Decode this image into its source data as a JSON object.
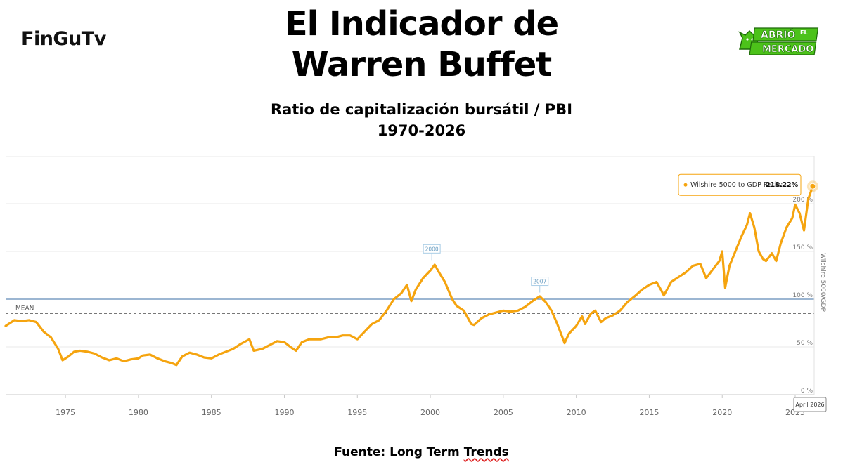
{
  "brand_left": "FinGuTv",
  "title_line1": "El Indicador de",
  "title_line2": "Warren Buffet",
  "subtitle_line1": "Ratio de capitalización bursátil / PBI",
  "subtitle_line2": "1970-2026",
  "badge": {
    "line1": "ABRIÓ",
    "line2": "MERCADO",
    "small": "EL"
  },
  "source_prefix": "Fuente: Long Term ",
  "source_underlined": "Trends",
  "colors": {
    "series": "#f5a40f",
    "mean": "#777777",
    "hundred": "#3a6ea5",
    "badge_green": "#4cc21a"
  },
  "chart_data": {
    "type": "line",
    "title": "Ratio de capitalización bursátil / PBI",
    "ylabel": "Wilshire 5000/GDP",
    "xlim": [
      1970.9,
      2026.3
    ],
    "ylim": [
      0,
      250
    ],
    "x_ticks": [
      1975,
      1980,
      1985,
      1990,
      1995,
      2000,
      2005,
      2010,
      2015,
      2020,
      2025
    ],
    "x_tick_labels": [
      "1975",
      "1980",
      "1985",
      "1990",
      "1995",
      "2000",
      "2005",
      "2010",
      "2015",
      "2020",
      "2025"
    ],
    "y_ticks": [
      0,
      50,
      100,
      150,
      200
    ],
    "y_tick_labels": [
      "0 %",
      "50 %",
      "100 %",
      "150 %",
      "200 %"
    ],
    "mean": {
      "label": "MEAN",
      "value": 85
    },
    "reference_100": 100,
    "annotations": [
      {
        "label": "2000",
        "x": 2000.1,
        "y": 138
      },
      {
        "label": "2007",
        "x": 2007.5,
        "y": 104
      }
    ],
    "tooltip": {
      "label": "Wilshire 5000 to GDP Ratio:",
      "value": "218.22%",
      "x": 2026.2,
      "y": 218.2
    },
    "crosshair_label": "April 2026",
    "series": [
      {
        "name": "Wilshire 5000 to GDP Ratio",
        "x": [
          1970.9,
          1971.5,
          1972.0,
          1972.5,
          1973.0,
          1973.5,
          1974.0,
          1974.5,
          1974.8,
          1975.2,
          1975.6,
          1976.0,
          1976.5,
          1977.0,
          1977.5,
          1978.0,
          1978.5,
          1979.0,
          1979.5,
          1980.0,
          1980.3,
          1980.8,
          1981.3,
          1981.8,
          1982.3,
          1982.6,
          1983.0,
          1983.5,
          1984.0,
          1984.5,
          1985.0,
          1985.5,
          1986.0,
          1986.5,
          1987.0,
          1987.6,
          1987.9,
          1988.5,
          1989.0,
          1989.5,
          1990.0,
          1990.5,
          1990.8,
          1991.2,
          1991.7,
          1992.5,
          1993.0,
          1993.5,
          1994.0,
          1994.5,
          1995.0,
          1995.5,
          1996.0,
          1996.5,
          1997.0,
          1997.5,
          1998.0,
          1998.4,
          1998.7,
          1999.0,
          1999.5,
          2000.0,
          2000.3,
          2000.6,
          2001.0,
          2001.5,
          2001.8,
          2002.3,
          2002.8,
          2003.0,
          2003.5,
          2004.0,
          2004.5,
          2005.0,
          2005.5,
          2006.0,
          2006.5,
          2007.0,
          2007.5,
          2007.9,
          2008.3,
          2008.7,
          2009.0,
          2009.2,
          2009.5,
          2010.0,
          2010.4,
          2010.6,
          2011.0,
          2011.3,
          2011.7,
          2012.0,
          2012.5,
          2013.0,
          2013.5,
          2014.0,
          2014.5,
          2015.0,
          2015.5,
          2015.8,
          2016.0,
          2016.5,
          2017.0,
          2017.5,
          2018.0,
          2018.5,
          2018.9,
          2019.3,
          2019.8,
          2020.0,
          2020.2,
          2020.5,
          2020.9,
          2021.3,
          2021.7,
          2021.9,
          2022.2,
          2022.5,
          2022.8,
          2023.0,
          2023.4,
          2023.7,
          2024.0,
          2024.4,
          2024.8,
          2025.0,
          2025.3,
          2025.6,
          2025.9,
          2026.2
        ],
        "values": [
          72,
          78,
          77,
          78,
          76,
          66,
          60,
          48,
          36,
          40,
          45,
          46,
          45,
          43,
          39,
          36,
          38,
          35,
          37,
          38,
          41,
          42,
          38,
          35,
          33,
          31,
          40,
          44,
          42,
          39,
          38,
          42,
          45,
          48,
          53,
          58,
          46,
          48,
          52,
          56,
          55,
          49,
          46,
          55,
          58,
          58,
          60,
          60,
          62,
          62,
          58,
          66,
          74,
          78,
          88,
          100,
          106,
          115,
          98,
          110,
          122,
          130,
          136,
          128,
          118,
          100,
          93,
          88,
          74,
          73,
          80,
          84,
          86,
          88,
          87,
          88,
          92,
          98,
          103,
          97,
          88,
          74,
          62,
          54,
          64,
          72,
          82,
          74,
          85,
          88,
          76,
          80,
          83,
          88,
          97,
          103,
          110,
          115,
          118,
          110,
          104,
          118,
          123,
          128,
          135,
          137,
          122,
          130,
          140,
          150,
          112,
          135,
          150,
          165,
          178,
          190,
          175,
          150,
          142,
          140,
          148,
          140,
          158,
          175,
          185,
          199,
          190,
          172,
          205,
          218
        ]
      }
    ]
  }
}
